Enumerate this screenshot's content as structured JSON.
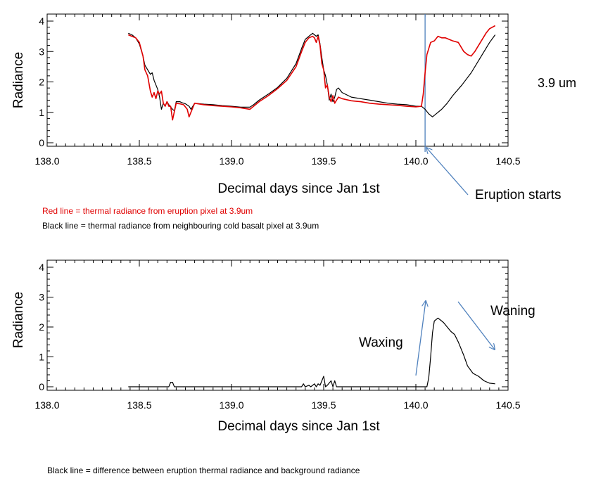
{
  "chart_data": [
    {
      "type": "line",
      "title": "",
      "xlabel": "Decimal days since Jan 1st",
      "ylabel": "Radiance",
      "xlim": [
        138.0,
        140.5
      ],
      "ylim": [
        0,
        4
      ],
      "x_ticks": [
        "138.0",
        "138.5",
        "139.0",
        "139.5",
        "140.0",
        "140.5"
      ],
      "y_ticks": [
        "0",
        "1",
        "2",
        "3",
        "4"
      ],
      "grid": false,
      "series": [
        {
          "color": "#000000",
          "points": [
            [
              138.44,
              3.6
            ],
            [
              138.46,
              3.55
            ],
            [
              138.48,
              3.45
            ],
            [
              138.5,
              3.25
            ],
            [
              138.52,
              2.85
            ],
            [
              138.53,
              2.55
            ],
            [
              138.545,
              2.4
            ],
            [
              138.56,
              2.25
            ],
            [
              138.57,
              2.3
            ],
            [
              138.58,
              2.05
            ],
            [
              138.6,
              1.75
            ],
            [
              138.61,
              1.5
            ],
            [
              138.62,
              1.1
            ],
            [
              138.63,
              1.3
            ],
            [
              138.64,
              1.2
            ],
            [
              138.65,
              1.35
            ],
            [
              138.66,
              1.25
            ],
            [
              138.68,
              1.1
            ],
            [
              138.69,
              1.05
            ],
            [
              138.7,
              1.35
            ],
            [
              138.72,
              1.35
            ],
            [
              138.73,
              1.32
            ],
            [
              138.75,
              1.28
            ],
            [
              138.77,
              1.2
            ],
            [
              138.78,
              1.1
            ],
            [
              138.8,
              1.3
            ],
            [
              138.85,
              1.27
            ],
            [
              138.9,
              1.25
            ],
            [
              138.95,
              1.22
            ],
            [
              139.0,
              1.2
            ],
            [
              139.05,
              1.17
            ],
            [
              139.1,
              1.17
            ],
            [
              139.12,
              1.25
            ],
            [
              139.15,
              1.4
            ],
            [
              139.2,
              1.6
            ],
            [
              139.25,
              1.82
            ],
            [
              139.3,
              2.12
            ],
            [
              139.35,
              2.6
            ],
            [
              139.38,
              3.1
            ],
            [
              139.4,
              3.4
            ],
            [
              139.42,
              3.5
            ],
            [
              139.44,
              3.6
            ],
            [
              139.45,
              3.55
            ],
            [
              139.46,
              3.5
            ],
            [
              139.47,
              3.55
            ],
            [
              139.48,
              3.25
            ],
            [
              139.49,
              2.8
            ],
            [
              139.5,
              2.4
            ],
            [
              139.51,
              2.2
            ],
            [
              139.52,
              1.9
            ],
            [
              139.53,
              1.4
            ],
            [
              139.54,
              1.6
            ],
            [
              139.55,
              1.35
            ],
            [
              139.56,
              1.5
            ],
            [
              139.57,
              1.75
            ],
            [
              139.58,
              1.8
            ],
            [
              139.6,
              1.65
            ],
            [
              139.65,
              1.5
            ],
            [
              139.7,
              1.45
            ],
            [
              139.75,
              1.4
            ],
            [
              139.8,
              1.35
            ],
            [
              139.85,
              1.3
            ],
            [
              139.9,
              1.27
            ],
            [
              139.95,
              1.25
            ],
            [
              140.0,
              1.2
            ],
            [
              140.03,
              1.2
            ],
            [
              140.05,
              1.1
            ],
            [
              140.07,
              0.95
            ],
            [
              140.09,
              0.85
            ],
            [
              140.11,
              0.95
            ],
            [
              140.14,
              1.1
            ],
            [
              140.17,
              1.3
            ],
            [
              140.2,
              1.55
            ],
            [
              140.25,
              1.9
            ],
            [
              140.3,
              2.3
            ],
            [
              140.35,
              2.8
            ],
            [
              140.4,
              3.3
            ],
            [
              140.43,
              3.55
            ]
          ]
        },
        {
          "color": "#e00000",
          "points": [
            [
              138.44,
              3.55
            ],
            [
              138.46,
              3.5
            ],
            [
              138.48,
              3.45
            ],
            [
              138.5,
              3.3
            ],
            [
              138.52,
              2.85
            ],
            [
              138.53,
              2.4
            ],
            [
              138.545,
              2.2
            ],
            [
              138.56,
              1.7
            ],
            [
              138.57,
              1.5
            ],
            [
              138.58,
              1.65
            ],
            [
              138.59,
              1.45
            ],
            [
              138.6,
              1.7
            ],
            [
              138.61,
              1.6
            ],
            [
              138.62,
              1.7
            ],
            [
              138.63,
              1.3
            ],
            [
              138.64,
              1.2
            ],
            [
              138.65,
              1.35
            ],
            [
              138.66,
              1.2
            ],
            [
              138.67,
              1.2
            ],
            [
              138.68,
              0.75
            ],
            [
              138.7,
              1.3
            ],
            [
              138.72,
              1.28
            ],
            [
              138.74,
              1.25
            ],
            [
              138.76,
              1.1
            ],
            [
              138.77,
              0.85
            ],
            [
              138.8,
              1.3
            ],
            [
              138.85,
              1.25
            ],
            [
              138.9,
              1.22
            ],
            [
              138.95,
              1.2
            ],
            [
              139.0,
              1.18
            ],
            [
              139.05,
              1.15
            ],
            [
              139.1,
              1.1
            ],
            [
              139.12,
              1.2
            ],
            [
              139.15,
              1.35
            ],
            [
              139.2,
              1.55
            ],
            [
              139.25,
              1.78
            ],
            [
              139.3,
              2.05
            ],
            [
              139.35,
              2.5
            ],
            [
              139.38,
              3.0
            ],
            [
              139.4,
              3.3
            ],
            [
              139.42,
              3.45
            ],
            [
              139.44,
              3.5
            ],
            [
              139.45,
              3.45
            ],
            [
              139.46,
              3.3
            ],
            [
              139.47,
              3.5
            ],
            [
              139.48,
              3.2
            ],
            [
              139.49,
              2.6
            ],
            [
              139.5,
              2.4
            ],
            [
              139.51,
              1.8
            ],
            [
              139.52,
              1.9
            ],
            [
              139.53,
              1.5
            ],
            [
              139.54,
              1.35
            ],
            [
              139.55,
              1.55
            ],
            [
              139.56,
              1.3
            ],
            [
              139.57,
              1.4
            ],
            [
              139.58,
              1.5
            ],
            [
              139.6,
              1.45
            ],
            [
              139.65,
              1.38
            ],
            [
              139.7,
              1.35
            ],
            [
              139.75,
              1.3
            ],
            [
              139.8,
              1.27
            ],
            [
              139.85,
              1.25
            ],
            [
              139.9,
              1.23
            ],
            [
              139.95,
              1.2
            ],
            [
              140.0,
              1.18
            ],
            [
              140.03,
              1.2
            ],
            [
              140.04,
              1.6
            ],
            [
              140.05,
              2.3
            ],
            [
              140.06,
              2.9
            ],
            [
              140.08,
              3.3
            ],
            [
              140.1,
              3.35
            ],
            [
              140.12,
              3.5
            ],
            [
              140.14,
              3.45
            ],
            [
              140.16,
              3.45
            ],
            [
              140.18,
              3.4
            ],
            [
              140.2,
              3.35
            ],
            [
              140.23,
              3.3
            ],
            [
              140.26,
              3.0
            ],
            [
              140.28,
              2.9
            ],
            [
              140.3,
              2.85
            ],
            [
              140.32,
              3.0
            ],
            [
              140.35,
              3.3
            ],
            [
              140.38,
              3.6
            ],
            [
              140.4,
              3.75
            ],
            [
              140.43,
              3.85
            ]
          ]
        }
      ],
      "vline_x": 140.05,
      "annotations": [
        {
          "text": "3.9 um"
        },
        {
          "text": "Eruption starts"
        }
      ],
      "notes": [
        {
          "text": "Red line = thermal radiance from eruption pixel at 3.9um",
          "color": "#e00000"
        },
        {
          "text": "Black line = thermal radiance from neighbouring cold basalt pixel at 3.9um",
          "color": "#000000"
        }
      ]
    },
    {
      "type": "line",
      "title": "",
      "xlabel": "Decimal days since Jan 1st",
      "ylabel": "Radiance",
      "xlim": [
        138.0,
        140.5
      ],
      "ylim": [
        0,
        4
      ],
      "x_ticks": [
        "138.0",
        "138.5",
        "139.0",
        "139.5",
        "140.0",
        "140.5"
      ],
      "y_ticks": [
        "0",
        "1",
        "2",
        "3",
        "4"
      ],
      "grid": false,
      "series": [
        {
          "color": "#000000",
          "points": [
            [
              138.44,
              0
            ],
            [
              138.6,
              0
            ],
            [
              138.66,
              0
            ],
            [
              138.67,
              0.15
            ],
            [
              138.68,
              0.15
            ],
            [
              138.69,
              0
            ],
            [
              139.1,
              0
            ],
            [
              139.38,
              0
            ],
            [
              139.39,
              0.1
            ],
            [
              139.4,
              0
            ],
            [
              139.42,
              0.05
            ],
            [
              139.43,
              0
            ],
            [
              139.45,
              0.1
            ],
            [
              139.46,
              0
            ],
            [
              139.47,
              0.1
            ],
            [
              139.48,
              0.05
            ],
            [
              139.5,
              0.35
            ],
            [
              139.51,
              0
            ],
            [
              139.52,
              0.05
            ],
            [
              139.54,
              0.2
            ],
            [
              139.55,
              0
            ],
            [
              139.56,
              0.2
            ],
            [
              139.57,
              0
            ],
            [
              139.8,
              0
            ],
            [
              140.06,
              0
            ],
            [
              140.07,
              0.3
            ],
            [
              140.08,
              1.0
            ],
            [
              140.09,
              1.8
            ],
            [
              140.1,
              2.2
            ],
            [
              140.12,
              2.3
            ],
            [
              140.13,
              2.25
            ],
            [
              140.15,
              2.15
            ],
            [
              140.17,
              2.0
            ],
            [
              140.19,
              1.85
            ],
            [
              140.21,
              1.75
            ],
            [
              140.23,
              1.5
            ],
            [
              140.26,
              1.05
            ],
            [
              140.28,
              0.7
            ],
            [
              140.31,
              0.45
            ],
            [
              140.34,
              0.35
            ],
            [
              140.37,
              0.2
            ],
            [
              140.4,
              0.12
            ],
            [
              140.43,
              0.1
            ]
          ]
        }
      ],
      "annotations": [
        {
          "text": "Waxing"
        },
        {
          "text": "Waning"
        }
      ],
      "notes": [
        {
          "text": "Black line = difference between eruption thermal radiance and background radiance",
          "color": "#000000"
        }
      ]
    }
  ],
  "accent_colors": {
    "arrow": "#4f81bd",
    "red_series": "#e00000"
  }
}
